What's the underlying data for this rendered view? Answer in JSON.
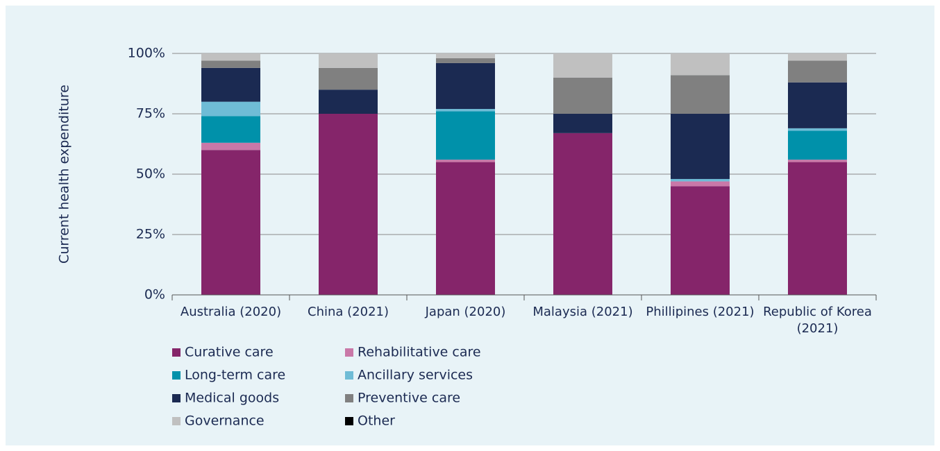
{
  "chart_data": {
    "type": "stacked_bar",
    "ylabel": "Current health expenditure",
    "categories": [
      "Australia (2020)",
      "China (2021)",
      "Japan (2020)",
      "Malaysia (2021)",
      "Phillipines (2021)",
      "Republic of Korea (2021)"
    ],
    "series": [
      {
        "name": "Curative care",
        "color": "#85256a",
        "values": [
          60,
          75,
          55,
          67,
          45,
          55
        ]
      },
      {
        "name": "Rehabilitative care",
        "color": "#c978a8",
        "values": [
          3,
          0,
          1,
          0,
          2,
          1
        ]
      },
      {
        "name": "Long-term care",
        "color": "#0091aa",
        "values": [
          11,
          0,
          20,
          0,
          0,
          12
        ]
      },
      {
        "name": "Ancillary services",
        "color": "#6fbcd6",
        "values": [
          6,
          0,
          1,
          0,
          1,
          1
        ]
      },
      {
        "name": "Medical goods",
        "color": "#1b2a52",
        "values": [
          14,
          10,
          19,
          8,
          27,
          19
        ]
      },
      {
        "name": "Preventive care",
        "color": "#808080",
        "values": [
          3,
          9,
          2,
          15,
          16,
          9
        ]
      },
      {
        "name": "Governance",
        "color": "#c0c0c0",
        "values": [
          3,
          6,
          2,
          10,
          9,
          3
        ]
      },
      {
        "name": "Other",
        "color": "#000000",
        "values": [
          0,
          0,
          0,
          0,
          0,
          0
        ]
      }
    ],
    "ylim": [
      0,
      100
    ],
    "yticks": [
      {
        "value": 0,
        "label": "0%"
      },
      {
        "value": 25,
        "label": "25%"
      },
      {
        "value": 50,
        "label": "50%"
      },
      {
        "value": 75,
        "label": "75%"
      },
      {
        "value": 100,
        "label": "100%"
      }
    ],
    "grid": true
  }
}
